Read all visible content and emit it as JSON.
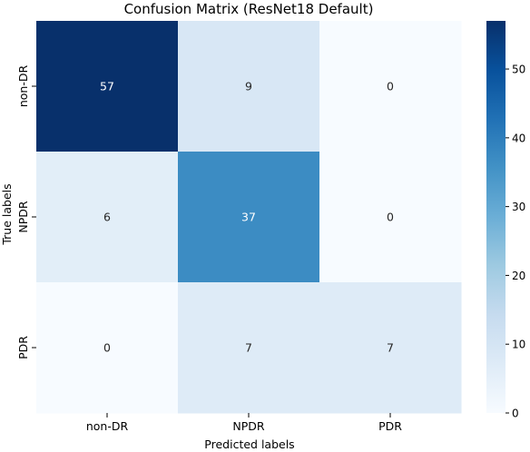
{
  "chart_data": {
    "type": "heatmap",
    "title": "Confusion Matrix (ResNet18 Default)",
    "xlabel": "Predicted labels",
    "ylabel": "True labels",
    "x_categories": [
      "non-DR",
      "NPDR",
      "PDR"
    ],
    "y_categories": [
      "non-DR",
      "NPDR",
      "PDR"
    ],
    "values": [
      [
        57,
        9,
        0
      ],
      [
        6,
        37,
        0
      ],
      [
        0,
        7,
        7
      ]
    ],
    "colormap": "Blues",
    "vmin": 0,
    "vmax": 57,
    "colorbar_ticks": [
      0,
      10,
      20,
      30,
      40,
      50
    ],
    "colors": {
      "low": "#f7fbff",
      "high": "#08306b",
      "text_dark": "#262626",
      "text_light": "#ffffff"
    }
  }
}
